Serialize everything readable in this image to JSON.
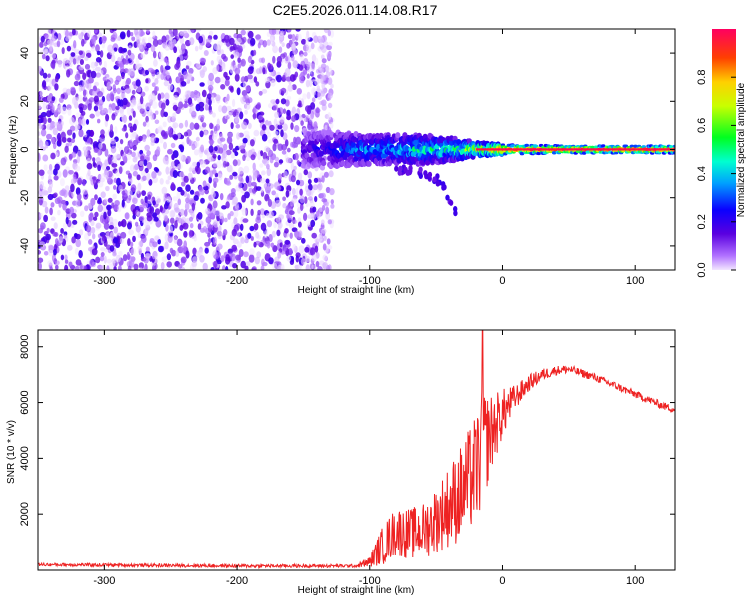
{
  "title": "C2E5.2026.011.14.08.R17",
  "colors": {
    "snr_line": "#ee2222",
    "axis": "#000000",
    "background": "#ffffff"
  },
  "chart_data": [
    {
      "type": "heatmap",
      "name": "spectrogram",
      "xlabel": "Height of straight line (km)",
      "ylabel": "Frequency (Hz)",
      "xlim": [
        -350,
        130
      ],
      "ylim": [
        -50,
        50
      ],
      "xticks": [
        -300,
        -200,
        -100,
        0,
        100
      ],
      "xtick_labels": [
        "-300",
        "-200",
        "-100",
        "0",
        "100"
      ],
      "yticks": [
        -40,
        -20,
        0,
        20,
        40
      ],
      "ytick_labels": [
        "-40",
        "-20",
        "0",
        "20",
        "40"
      ],
      "noise_region_x": [
        -350,
        -128
      ],
      "signal_band": {
        "x": [
          -150,
          -120,
          -100,
          -80,
          -60,
          -40,
          -20,
          0,
          50,
          130
        ],
        "half_width_hz": [
          8,
          7,
          6,
          6,
          6,
          5,
          3,
          2,
          1.5,
          1.5
        ],
        "peak_amplitude": [
          0.2,
          0.35,
          0.45,
          0.5,
          0.55,
          0.6,
          0.8,
          0.95,
          1.0,
          1.0
        ]
      },
      "secondary_trace": {
        "x": [
          -80,
          -70,
          -60,
          -50,
          -45,
          -40,
          -35
        ],
        "y": [
          -8,
          -9,
          -10,
          -12,
          -15,
          -20,
          -26
        ]
      },
      "colorbar": {
        "label": "Normalized spectral amplitude",
        "range": [
          0,
          1
        ],
        "ticks": [
          0.0,
          0.2,
          0.4,
          0.6,
          0.8
        ],
        "tick_labels": [
          "0.0",
          "0.2",
          "0.4",
          "0.6",
          "0.8"
        ]
      }
    },
    {
      "type": "line",
      "name": "snr",
      "xlabel": "Height of straight line (km)",
      "ylabel": "SNR (10 * v/v)",
      "xlim": [
        -350,
        130
      ],
      "ylim": [
        0,
        8600
      ],
      "xticks": [
        -300,
        -200,
        -100,
        0,
        100
      ],
      "xtick_labels": [
        "-300",
        "-200",
        "-100",
        "0",
        "100"
      ],
      "yticks": [
        2000,
        4000,
        6000,
        8000
      ],
      "ytick_labels": [
        "2000",
        "4000",
        "6000",
        "8000"
      ],
      "envelope": {
        "x": [
          -350,
          -200,
          -110,
          -100,
          -90,
          -80,
          -70,
          -60,
          -50,
          -40,
          -30,
          -20,
          -15,
          -10,
          0,
          10,
          20,
          30,
          40,
          50,
          60,
          70,
          80,
          90,
          100,
          110,
          120,
          130
        ],
        "mean": [
          200,
          150,
          150,
          300,
          900,
          1400,
          1300,
          1400,
          1800,
          2300,
          2800,
          3600,
          4300,
          4800,
          5600,
          6200,
          6700,
          7000,
          7150,
          7200,
          7050,
          6900,
          6700,
          6500,
          6300,
          6100,
          5900,
          5750
        ],
        "spread": [
          60,
          60,
          60,
          200,
          700,
          900,
          900,
          1000,
          1200,
          1500,
          1800,
          2000,
          2200,
          1500,
          900,
          450,
          300,
          220,
          170,
          150,
          150,
          140,
          140,
          140,
          140,
          140,
          140,
          140
        ]
      },
      "peak_x": -15,
      "peak_y": 8600
    }
  ]
}
